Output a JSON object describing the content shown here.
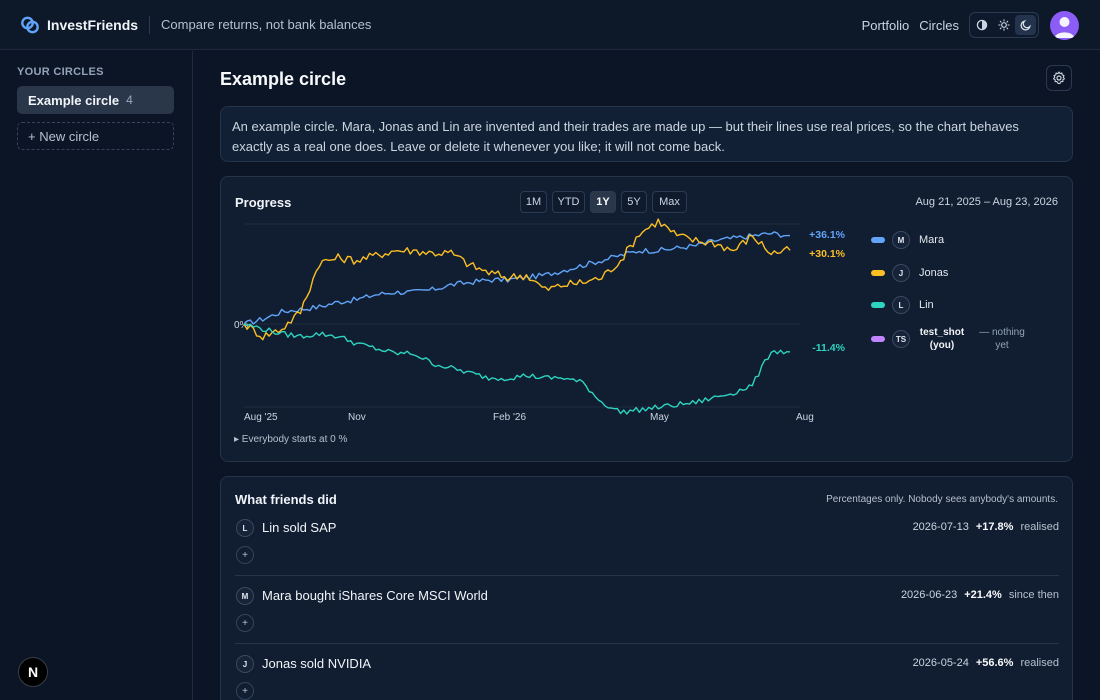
{
  "app": {
    "name": "InvestFriends",
    "tagline": "Compare returns, not bank balances"
  },
  "nav": {
    "portfolio": "Portfolio",
    "circles": "Circles"
  },
  "sidebar": {
    "heading": "YOUR CIRCLES",
    "circles": [
      {
        "name": "Example circle",
        "count": "4"
      }
    ],
    "new_circle": "+ New circle",
    "nx_label": "N"
  },
  "main": {
    "title": "Example circle",
    "description": "An example circle. Mara, Jonas and Lin are invented and their trades are made up — but their lines use real prices, so the chart behaves exactly as a real one does. Leave or delete it whenever you like; it will not come back."
  },
  "progress": {
    "title": "Progress",
    "ranges": [
      "1M",
      "YTD",
      "1Y",
      "5Y",
      "Max"
    ],
    "active_range": "1Y",
    "date_range": "Aug 21, 2025 – Aug 23, 2026",
    "baseline_label": "0%",
    "x_ticks": [
      "Aug '25",
      "Nov",
      "Feb '26",
      "May",
      "Aug"
    ],
    "everybody_note": "▸ Everybody starts at 0 %"
  },
  "chart_data": {
    "type": "line",
    "title": "Progress",
    "x_range": [
      "2025-08-21",
      "2026-08-23"
    ],
    "x_ticks": [
      "Aug '25",
      "Nov",
      "Feb '26",
      "May",
      "Aug"
    ],
    "y_unit": "%",
    "baseline": 0,
    "series": [
      {
        "name": "Mara",
        "initial": "M",
        "color": "#60a5fa",
        "end_label": "+36.1%",
        "end_value": 36.1,
        "values": [
          0,
          2,
          5,
          6,
          7,
          9,
          10,
          12,
          13,
          13,
          14,
          16,
          17,
          18,
          18,
          19,
          20,
          22,
          24,
          26,
          28,
          30,
          30,
          31,
          32,
          34,
          35,
          36,
          37,
          36.1
        ]
      },
      {
        "name": "Jonas",
        "initial": "J",
        "color": "#fbbf24",
        "end_label": "+30.1%",
        "end_value": 30.1,
        "values": [
          0,
          -5,
          -2,
          5,
          25,
          27,
          26,
          28,
          30,
          30,
          29,
          29,
          24,
          21,
          19,
          20,
          14,
          16,
          17,
          19,
          26,
          37,
          42,
          36,
          34,
          33,
          30,
          36,
          29,
          30.1
        ]
      },
      {
        "name": "Lin",
        "initial": "L",
        "color": "#2dd4bf",
        "end_label": "-11.4%",
        "end_value": -11.4,
        "values": [
          0,
          -2,
          -4,
          -5,
          -4,
          -5,
          -8,
          -10,
          -12,
          -12,
          -16,
          -18,
          -20,
          -22,
          -22,
          -21,
          -22,
          -22,
          -24,
          -32,
          -36,
          -35,
          -34,
          -33,
          -32,
          -30,
          -28,
          -25,
          -11,
          -11.4
        ]
      },
      {
        "name": "test_shot (you)",
        "initial": "TS",
        "color": "#c084fc",
        "end_label": "— nothing yet",
        "values": []
      }
    ]
  },
  "legend": [
    {
      "name": "Mara",
      "initial": "M",
      "color": "#60a5fa"
    },
    {
      "name": "Jonas",
      "initial": "J",
      "color": "#fbbf24"
    },
    {
      "name": "Lin",
      "initial": "L",
      "color": "#2dd4bf"
    },
    {
      "name": "test_shot (you)",
      "initial": "TS",
      "color": "#c084fc",
      "note": "— nothing yet"
    }
  ],
  "friends": {
    "title": "What friends did",
    "note": "Percentages only. Nobody sees anybody's amounts.",
    "items": [
      {
        "initial": "L",
        "text": "Lin sold SAP",
        "date": "2026-07-13",
        "pct": "+17.8%",
        "suffix": "realised"
      },
      {
        "initial": "M",
        "text": "Mara bought iShares Core MSCI World",
        "date": "2026-06-23",
        "pct": "+21.4%",
        "suffix": "since then"
      },
      {
        "initial": "J",
        "text": "Jonas sold NVIDIA",
        "date": "2026-05-24",
        "pct": "+56.6%",
        "suffix": "realised"
      }
    ],
    "add_label": "+"
  }
}
